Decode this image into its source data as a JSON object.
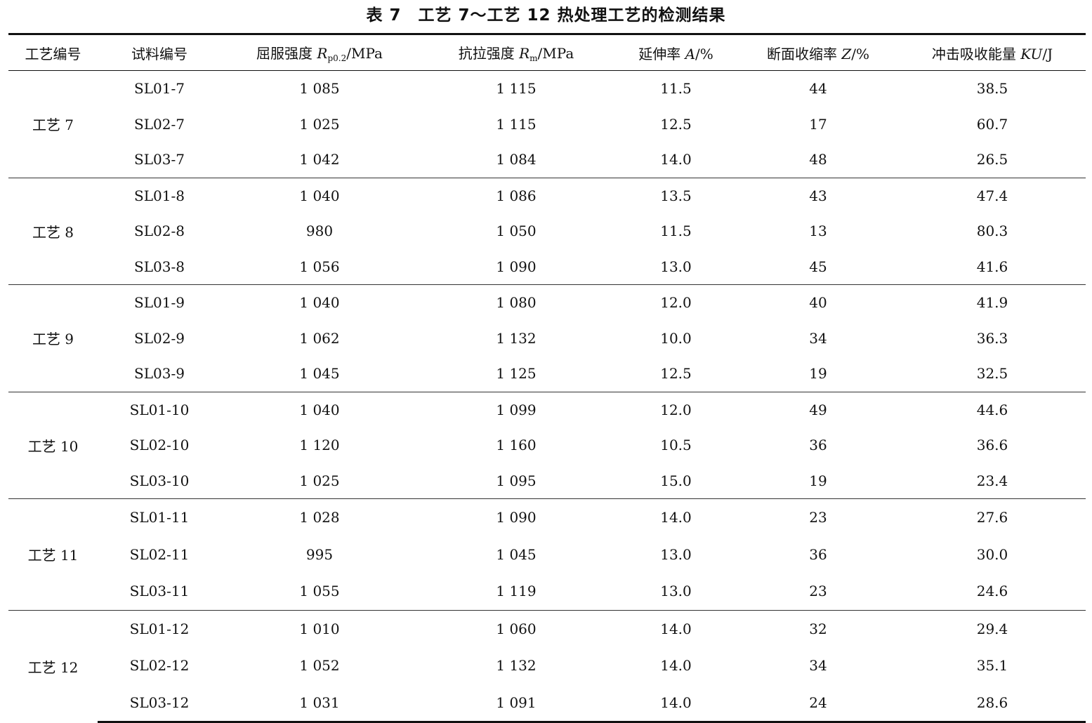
{
  "title": "表 7　工艺 7～工艺 12 热处理工艺的检测结果",
  "headers": {
    "process": "工艺编号",
    "sample": "试料编号",
    "yield_prefix": "屈服强度 ",
    "yield_sym": "R",
    "yield_sub": "p0.2",
    "yield_unit": "/MPa",
    "tensile_prefix": "抗拉强度 ",
    "tensile_sym": "R",
    "tensile_sub": "m",
    "tensile_unit": "/MPa",
    "elong_prefix": "延伸率 ",
    "elong_sym": "A",
    "elong_unit": "/%",
    "reduction_prefix": "断面收缩率 ",
    "reduction_sym": "Z",
    "reduction_unit": "/%",
    "impact_prefix": "冲击吸收能量 ",
    "impact_sym": "KU",
    "impact_unit": "/J"
  },
  "groups": [
    {
      "process": "工艺 7",
      "rows": [
        [
          "SL01-7",
          "1 085",
          "1 115",
          "11.5",
          "44",
          "38.5"
        ],
        [
          "SL02-7",
          "1 025",
          "1 115",
          "12.5",
          "17",
          "60.7"
        ],
        [
          "SL03-7",
          "1 042",
          "1 084",
          "14.0",
          "48",
          "26.5"
        ]
      ]
    },
    {
      "process": "工艺 8",
      "rows": [
        [
          "SL01-8",
          "1 040",
          "1 086",
          "13.5",
          "43",
          "47.4"
        ],
        [
          "SL02-8",
          "980",
          "1 050",
          "11.5",
          "13",
          "80.3"
        ],
        [
          "SL03-8",
          "1 056",
          "1 090",
          "13.0",
          "45",
          "41.6"
        ]
      ]
    },
    {
      "process": "工艺 9",
      "rows": [
        [
          "SL01-9",
          "1 040",
          "1 080",
          "12.0",
          "40",
          "41.9"
        ],
        [
          "SL02-9",
          "1 062",
          "1 132",
          "10.0",
          "34",
          "36.3"
        ],
        [
          "SL03-9",
          "1 045",
          "1 125",
          "12.5",
          "19",
          "32.5"
        ]
      ]
    },
    {
      "process": "工艺 10",
      "rows": [
        [
          "SL01-10",
          "1 040",
          "1 099",
          "12.0",
          "49",
          "44.6"
        ],
        [
          "SL02-10",
          "1 120",
          "1 160",
          "10.5",
          "36",
          "36.6"
        ],
        [
          "SL03-10",
          "1 025",
          "1 095",
          "15.0",
          "19",
          "23.4"
        ]
      ]
    },
    {
      "process": "工艺 11",
      "rows": [
        [
          "SL01-11",
          "1 028",
          "1 090",
          "14.0",
          "23",
          "27.6"
        ],
        [
          "SL02-11",
          "995",
          "1 045",
          "13.0",
          "36",
          "30.0"
        ],
        [
          "SL03-11",
          "1 055",
          "1 119",
          "13.0",
          "23",
          "24.6"
        ]
      ]
    },
    {
      "process": "工艺 12",
      "rows": [
        [
          "SL01-12",
          "1 010",
          "1 060",
          "14.0",
          "32",
          "29.4"
        ],
        [
          "SL02-12",
          "1 052",
          "1 132",
          "14.0",
          "34",
          "35.1"
        ],
        [
          "SL03-12",
          "1 031",
          "1 091",
          "14.0",
          "24",
          "28.6"
        ]
      ]
    }
  ]
}
